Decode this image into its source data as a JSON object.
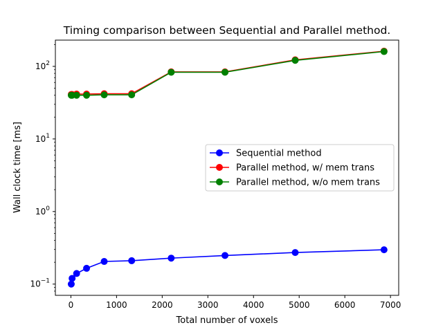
{
  "chart_data": {
    "type": "line",
    "title": "Timing comparison between Sequential and Parallel method.",
    "xlabel": "Total number of voxels",
    "ylabel": "Wall clock time [ms]",
    "xlim": [
      -340,
      7180
    ],
    "ylim": [
      0.07,
      230
    ],
    "yscale": "log",
    "x_ticks": [
      0,
      1000,
      2000,
      3000,
      4000,
      5000,
      6000,
      7000
    ],
    "y_ticks": [
      0.1,
      1,
      10,
      100
    ],
    "y_tick_labels": [
      {
        "base": "10",
        "exp": "−1"
      },
      {
        "base": "10",
        "exp": "0"
      },
      {
        "base": "10",
        "exp": "1"
      },
      {
        "base": "10",
        "exp": "2"
      }
    ],
    "grid": false,
    "legend_position": "center-right",
    "x": [
      8,
      27,
      125,
      343,
      729,
      1331,
      2197,
      3375,
      4913,
      6859
    ],
    "series": [
      {
        "name": "Sequential method",
        "color": "#0000ff",
        "values": [
          0.1,
          0.12,
          0.14,
          0.165,
          0.205,
          0.21,
          0.228,
          0.248,
          0.272,
          0.297
        ]
      },
      {
        "name": "Parallel method, w/ mem trans",
        "color": "#ff0000",
        "values": [
          41,
          41,
          41.5,
          41.5,
          42,
          42,
          84,
          84,
          123,
          162
        ]
      },
      {
        "name": "Parallel method, w/o mem trans",
        "color": "#008000",
        "values": [
          40,
          40,
          40,
          40,
          40.5,
          40.5,
          83,
          83,
          121,
          160
        ]
      }
    ]
  }
}
